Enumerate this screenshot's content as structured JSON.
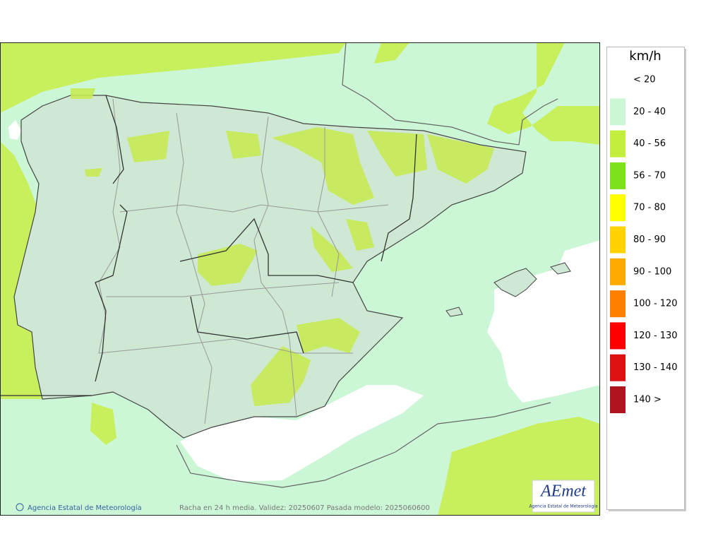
{
  "legend": {
    "title": "km/h",
    "items": [
      {
        "label": "< 20"
      },
      {
        "label": "20 - 40",
        "color": "#ccf7d6"
      },
      {
        "label": "40 - 56",
        "color": "#c3ee3d"
      },
      {
        "label": "56 - 70",
        "color": "#7de21a"
      },
      {
        "label": "70 - 80",
        "color": "#ffff00"
      },
      {
        "label": "80 - 90",
        "color": "#ffd200"
      },
      {
        "label": "90 - 100",
        "color": "#ffaa00"
      },
      {
        "label": "100 - 120",
        "color": "#ff8000"
      },
      {
        "label": "120 - 130",
        "color": "#ff0000"
      },
      {
        "label": "130 - 140",
        "color": "#dd1111"
      },
      {
        "label": "140 >",
        "color": "#b0141e"
      }
    ]
  },
  "footer": {
    "credit": "Agencia Estatal de Meteorología",
    "caption": "Racha en 24 h media. Validez: 20250607 Pasada modelo: 2025060600"
  },
  "logo": {
    "name": "AEmet",
    "subtitle": "Agencia Estatal de Meteorología"
  }
}
